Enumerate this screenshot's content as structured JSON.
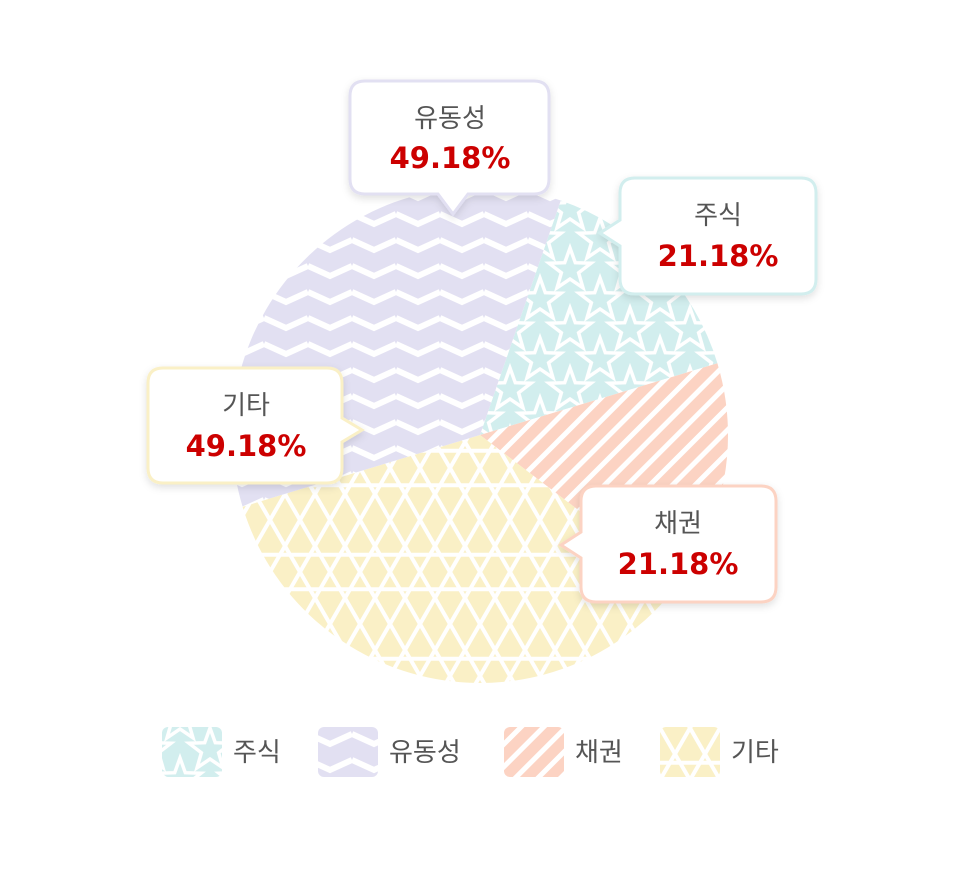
{
  "chart_data": {
    "type": "pie",
    "slices": [
      {
        "key": "stock",
        "label": "주식",
        "value_text": "21.18%",
        "value": 21.18,
        "color": "#d2eeee",
        "pattern": "stars"
      },
      {
        "key": "bond",
        "label": "채권",
        "value_text": "21.18%",
        "value": 21.18,
        "color": "#fcd3c3",
        "pattern": "diagonal-stripes"
      },
      {
        "key": "other",
        "label": "기타",
        "value_text": "49.18%",
        "value": 49.18,
        "color": "#faf0c6",
        "pattern": "hexagon-lattice"
      },
      {
        "key": "liquidity",
        "label": "유동성",
        "value_text": "49.18%",
        "value": 49.18,
        "color": "#e2e0f2",
        "pattern": "chevron-zigzag"
      }
    ],
    "legend": {
      "position": "bottom",
      "entries": [
        "주식",
        "유동성",
        "채권",
        "기타"
      ]
    },
    "value_color": "#cc0000"
  }
}
